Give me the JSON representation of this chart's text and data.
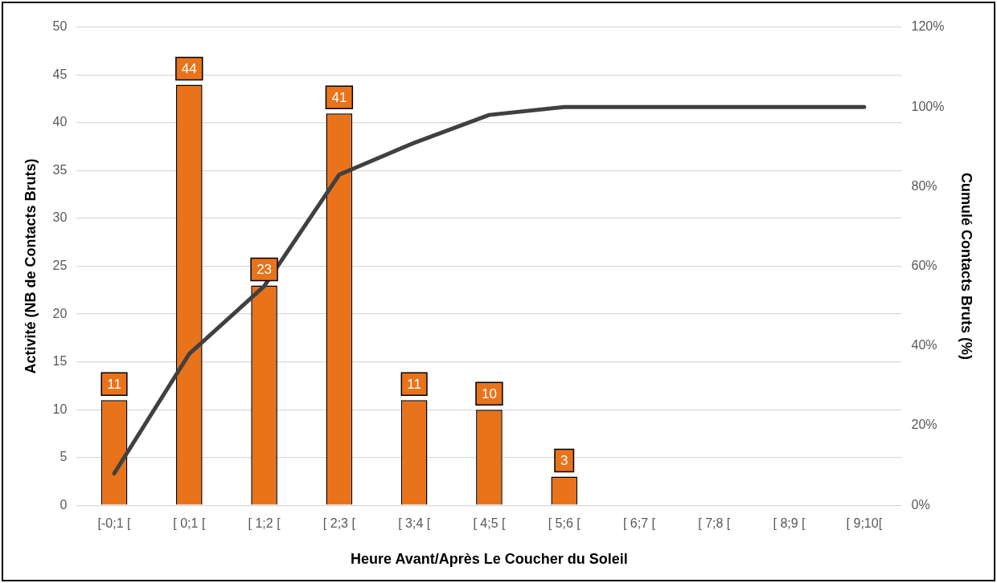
{
  "chart_data": {
    "type": "bar",
    "xlabel": "Heure Avant/Après Le Coucher du Soleil",
    "ylabel": "Activité (NB de Contacts Bruts)",
    "y2label": "Cumulé Contacts Bruts (%)",
    "categories": [
      "[-0;1 [",
      "[ 0;1 [",
      "[ 1;2 [",
      "[ 2;3 [",
      "[ 3;4 [",
      "[ 4;5 [",
      "[ 5;6 [",
      "[ 6;7 [",
      "[ 7;8 [",
      "[ 8;9 [",
      "[ 9;10["
    ],
    "series": [
      {
        "color": "#e8731a",
        "values": [
          11,
          44,
          23,
          41,
          11,
          10,
          3,
          null,
          null,
          null,
          null
        ],
        "data_labels": true
      },
      {
        "type": "line",
        "axis": "y2",
        "color": "#404040",
        "values": [
          8,
          38,
          55,
          83,
          91,
          98,
          100,
          100,
          100,
          100,
          100
        ]
      }
    ],
    "ylim": [
      0,
      50
    ],
    "yticks": [
      0,
      5,
      10,
      15,
      20,
      25,
      30,
      35,
      40,
      45,
      50
    ],
    "y2lim": [
      0,
      120
    ],
    "y2ticks": [
      {
        "value": 0,
        "label": "0%"
      },
      {
        "value": 20,
        "label": "20%"
      },
      {
        "value": 40,
        "label": "40%"
      },
      {
        "value": 60,
        "label": "60%"
      },
      {
        "value": 80,
        "label": "80%"
      },
      {
        "value": 100,
        "label": "100%"
      },
      {
        "value": 120,
        "label": "120%"
      }
    ],
    "grid": "y",
    "legend": false,
    "marker": "none",
    "line_style": "solid"
  }
}
